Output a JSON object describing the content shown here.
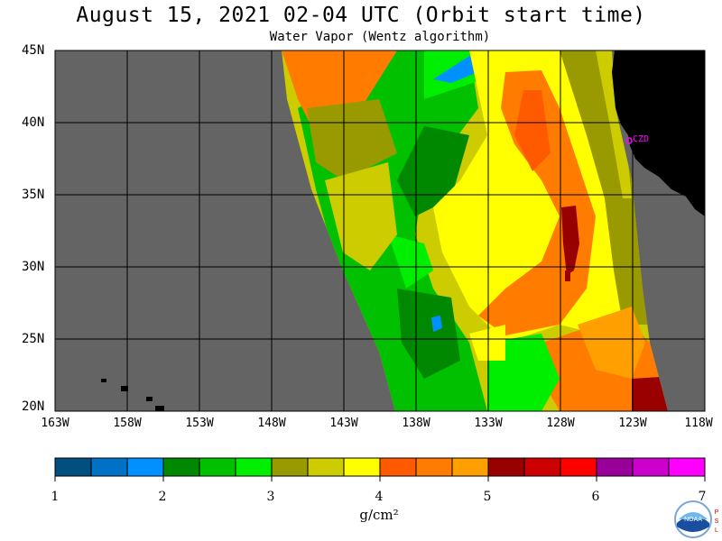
{
  "title": "August 15, 2021  02-04 UTC  (Orbit start time)",
  "subtitle": "Water Vapor (Wentz algorithm)",
  "lat_labels": [
    "45N",
    "40N",
    "35N",
    "30N",
    "25N",
    "20N"
  ],
  "lon_labels": [
    "163W",
    "158W",
    "153W",
    "148W",
    "143W",
    "138W",
    "133W",
    "128W",
    "123W",
    "118W"
  ],
  "station_label": "CZD",
  "colorbar": {
    "units": "g/cm²",
    "ticks": [
      "1",
      "2",
      "3",
      "4",
      "5",
      "6",
      "7"
    ],
    "colors": [
      "#004f7f",
      "#0072c6",
      "#0090ff",
      "#008800",
      "#00c000",
      "#00ee00",
      "#999900",
      "#cccc00",
      "#ffff00",
      "#ff5a00",
      "#ff7c00",
      "#ffa000",
      "#990000",
      "#cc0000",
      "#ff0000",
      "#990099",
      "#cc00cc",
      "#ff00ff"
    ]
  },
  "logo_text": "NOAA",
  "logo_side_text": [
    "P",
    "S",
    "L"
  ],
  "colors": {
    "no_data": "#646464",
    "land": "#000000",
    "station": "#ff00ff",
    "grid": "#000000"
  }
}
